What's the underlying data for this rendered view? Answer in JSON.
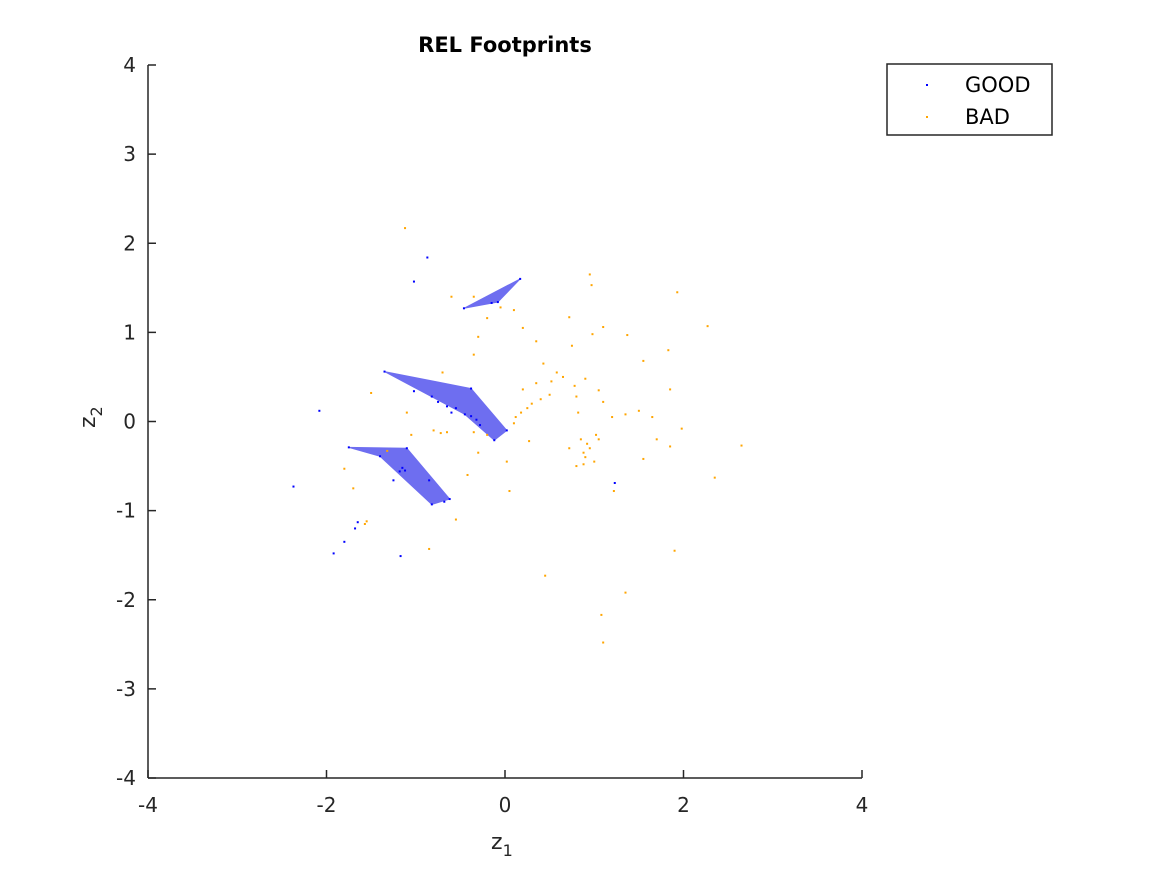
{
  "chart_data": {
    "type": "scatter",
    "title": "REL Footprints",
    "xlabel": "z",
    "xlabel_sub": "1",
    "ylabel": "z",
    "ylabel_sub": "2",
    "xlim": [
      -4,
      4
    ],
    "ylim": [
      -4,
      4
    ],
    "xticks": [
      -4,
      -2,
      0,
      2,
      4
    ],
    "yticks": [
      -4,
      -3,
      -2,
      -1,
      0,
      1,
      2,
      3,
      4
    ],
    "xtick_labels": [
      "-4",
      "-2",
      "0",
      "2",
      "4"
    ],
    "ytick_labels": [
      "-4",
      "-3",
      "-2",
      "-1",
      "0",
      "1",
      "2",
      "3",
      "4"
    ],
    "grid": false,
    "legend_position": "top-right",
    "colors": {
      "good": "#0000ff",
      "bad": "#ffa500",
      "footprint": "#6e6ef0"
    },
    "footprints": [
      [
        [
          -0.46,
          1.27
        ],
        [
          0.17,
          1.6
        ],
        [
          -0.08,
          1.34
        ]
      ],
      [
        [
          -1.35,
          0.56
        ],
        [
          -0.38,
          0.37
        ],
        [
          0.02,
          -0.1
        ],
        [
          -0.12,
          -0.21
        ],
        [
          -0.45,
          0.08
        ]
      ],
      [
        [
          -1.75,
          -0.29
        ],
        [
          -1.1,
          -0.3
        ],
        [
          -0.62,
          -0.87
        ],
        [
          -0.82,
          -0.93
        ],
        [
          -1.4,
          -0.39
        ]
      ]
    ],
    "series": [
      {
        "name": "GOOD",
        "points": [
          [
            -0.87,
            1.84
          ],
          [
            -1.02,
            1.57
          ],
          [
            -0.46,
            1.27
          ],
          [
            0.17,
            1.6
          ],
          [
            -0.08,
            1.34
          ],
          [
            -0.15,
            1.33
          ],
          [
            -1.35,
            0.56
          ],
          [
            -0.38,
            0.37
          ],
          [
            -1.02,
            0.34
          ],
          [
            -2.08,
            0.12
          ],
          [
            -0.82,
            0.28
          ],
          [
            -0.65,
            0.17
          ],
          [
            -0.55,
            0.15
          ],
          [
            -0.45,
            0.08
          ],
          [
            -0.38,
            0.06
          ],
          [
            -0.32,
            0.02
          ],
          [
            -0.28,
            -0.04
          ],
          [
            -0.12,
            -0.21
          ],
          [
            0.02,
            -0.1
          ],
          [
            -0.75,
            0.22
          ],
          [
            -0.6,
            0.1
          ],
          [
            -1.75,
            -0.29
          ],
          [
            -1.4,
            -0.39
          ],
          [
            -1.1,
            -0.3
          ],
          [
            -1.15,
            -0.52
          ],
          [
            -1.18,
            -0.56
          ],
          [
            -1.25,
            -0.66
          ],
          [
            -0.82,
            -0.93
          ],
          [
            -0.62,
            -0.87
          ],
          [
            -0.68,
            -0.9
          ],
          [
            -0.85,
            -0.66
          ],
          [
            -2.37,
            -0.73
          ],
          [
            -1.65,
            -1.13
          ],
          [
            -1.68,
            -1.2
          ],
          [
            -1.8,
            -1.35
          ],
          [
            -1.92,
            -1.48
          ],
          [
            -1.17,
            -1.51
          ],
          [
            1.23,
            -0.69
          ],
          [
            -1.12,
            -0.55
          ]
        ]
      },
      {
        "name": "BAD",
        "points": [
          [
            -1.12,
            2.17
          ],
          [
            -0.6,
            1.4
          ],
          [
            -0.35,
            1.4
          ],
          [
            -0.2,
            1.16
          ],
          [
            0.1,
            1.25
          ],
          [
            -0.05,
            1.28
          ],
          [
            0.2,
            1.05
          ],
          [
            -0.3,
            0.95
          ],
          [
            -0.35,
            0.75
          ],
          [
            0.35,
            0.9
          ],
          [
            0.75,
            0.85
          ],
          [
            0.95,
            1.65
          ],
          [
            0.97,
            1.53
          ],
          [
            0.72,
            1.17
          ],
          [
            1.1,
            1.06
          ],
          [
            1.37,
            0.97
          ],
          [
            0.98,
            0.98
          ],
          [
            1.83,
            0.8
          ],
          [
            2.27,
            1.07
          ],
          [
            1.93,
            1.45
          ],
          [
            0.43,
            0.65
          ],
          [
            0.58,
            0.55
          ],
          [
            0.65,
            0.5
          ],
          [
            0.52,
            0.45
          ],
          [
            0.9,
            0.48
          ],
          [
            0.78,
            0.4
          ],
          [
            0.5,
            0.3
          ],
          [
            0.4,
            0.25
          ],
          [
            0.3,
            0.2
          ],
          [
            0.25,
            0.15
          ],
          [
            0.18,
            0.1
          ],
          [
            0.12,
            0.05
          ],
          [
            0.1,
            -0.02
          ],
          [
            0.2,
            0.36
          ],
          [
            0.35,
            0.43
          ],
          [
            0.8,
            0.28
          ],
          [
            0.82,
            0.1
          ],
          [
            1.05,
            0.35
          ],
          [
            1.1,
            0.22
          ],
          [
            1.2,
            0.05
          ],
          [
            1.35,
            0.08
          ],
          [
            1.5,
            0.12
          ],
          [
            1.55,
            0.68
          ],
          [
            1.65,
            0.05
          ],
          [
            1.85,
            0.36
          ],
          [
            1.7,
            -0.2
          ],
          [
            1.98,
            -0.08
          ],
          [
            1.85,
            -0.28
          ],
          [
            2.35,
            -0.63
          ],
          [
            2.65,
            -0.27
          ],
          [
            0.85,
            -0.2
          ],
          [
            0.92,
            -0.25
          ],
          [
            0.88,
            -0.35
          ],
          [
            0.9,
            -0.4
          ],
          [
            0.95,
            -0.3
          ],
          [
            1.0,
            -0.45
          ],
          [
            1.05,
            -0.2
          ],
          [
            0.8,
            -0.5
          ],
          [
            0.88,
            -0.48
          ],
          [
            1.02,
            -0.15
          ],
          [
            0.72,
            -0.3
          ],
          [
            1.55,
            -0.42
          ],
          [
            1.22,
            -0.78
          ],
          [
            0.05,
            -0.78
          ],
          [
            0.02,
            -0.45
          ],
          [
            -0.3,
            -0.35
          ],
          [
            -0.42,
            -0.6
          ],
          [
            -0.55,
            -1.1
          ],
          [
            -0.85,
            -1.43
          ],
          [
            -1.55,
            -1.12
          ],
          [
            -1.57,
            -1.15
          ],
          [
            -1.7,
            -0.75
          ],
          [
            -1.5,
            0.32
          ],
          [
            -1.8,
            -0.53
          ],
          [
            -0.65,
            -0.12
          ],
          [
            -0.72,
            -0.13
          ],
          [
            -1.05,
            -0.15
          ],
          [
            -0.35,
            -0.12
          ],
          [
            -0.8,
            -0.1
          ],
          [
            -0.2,
            -0.15
          ],
          [
            -1.32,
            -0.33
          ],
          [
            -1.1,
            0.1
          ],
          [
            -0.7,
            0.55
          ],
          [
            0.45,
            -1.73
          ],
          [
            1.35,
            -1.92
          ],
          [
            1.08,
            -2.17
          ],
          [
            1.1,
            -2.48
          ],
          [
            1.9,
            -1.45
          ],
          [
            0.27,
            -0.22
          ]
        ]
      }
    ]
  }
}
